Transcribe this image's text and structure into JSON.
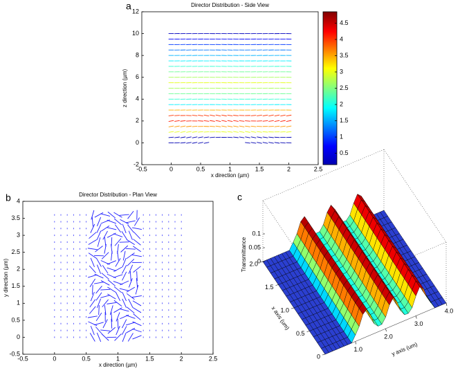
{
  "chart_data": [
    {
      "type": "quiver",
      "panel_label": "a",
      "title": "Director Distribution - Side View",
      "x_label": "x direction (µm)",
      "y_label": "z direction (µm)",
      "xlim": [
        -0.5,
        2.5
      ],
      "xticks": [
        -0.5,
        0,
        0.5,
        1,
        1.5,
        2,
        2.5
      ],
      "ylim": [
        -2,
        12
      ],
      "yticks": [
        -2,
        0,
        2,
        4,
        6,
        8,
        10,
        12
      ],
      "colorbar": {
        "lim": [
          0.15,
          4.85
        ],
        "ticks": [
          0.5,
          1,
          1.5,
          2,
          2.5,
          3,
          3.5,
          4,
          4.5
        ]
      }
    },
    {
      "type": "quiver",
      "panel_label": "b",
      "title": "Director Distribution - Plan View",
      "x_label": "x direction (µm)",
      "y_label": "y direction (µm)",
      "xlim": [
        -0.5,
        2.5
      ],
      "xticks": [
        -0.5,
        0,
        0.5,
        1,
        1.5,
        2,
        2.5
      ],
      "ylim": [
        -0.5,
        4
      ],
      "yticks": [
        -0.5,
        0,
        0.5,
        1,
        1.5,
        2,
        2.5,
        3,
        3.5,
        4
      ]
    },
    {
      "type": "surface3d",
      "panel_label": "c",
      "z_label": "Transmittance",
      "x_label": "x axis (um)",
      "y_label": "y axis (um)",
      "xticks": [
        0,
        0.5,
        {
          "value": 1,
          "label": "1.0"
        },
        1.5,
        {
          "value": 2,
          "label": "2.0"
        }
      ],
      "yticks": [
        {
          "value": 1,
          "label": "1.0"
        },
        {
          "value": 2,
          "label": "2.0"
        },
        {
          "value": 3,
          "label": "3.0"
        },
        {
          "value": 4,
          "label": "4.0"
        }
      ],
      "zticks": [
        0,
        0.05,
        0.1
      ]
    }
  ]
}
